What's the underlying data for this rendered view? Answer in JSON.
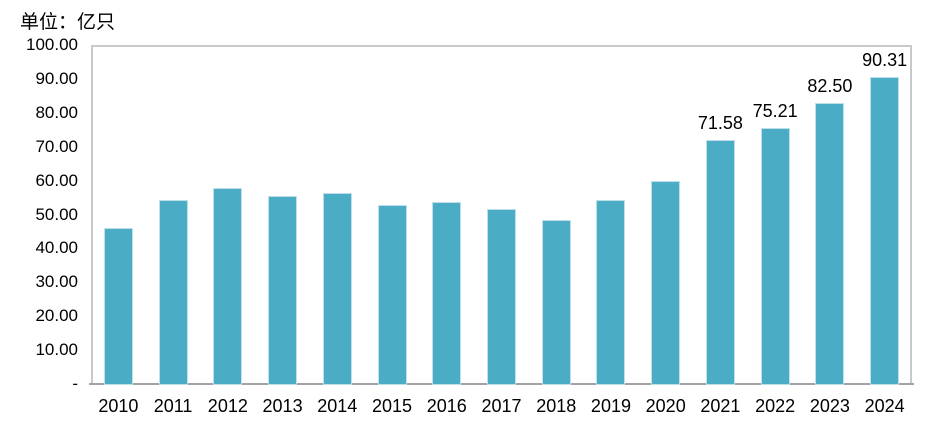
{
  "unit_label": "单位：亿只",
  "chart_data": {
    "type": "bar",
    "title": "单位：亿只",
    "xlabel": "",
    "ylabel": "",
    "categories": [
      "2010",
      "2011",
      "2012",
      "2013",
      "2014",
      "2015",
      "2016",
      "2017",
      "2018",
      "2019",
      "2020",
      "2021",
      "2022",
      "2023",
      "2024"
    ],
    "values": [
      45.7,
      53.9,
      57.5,
      55.2,
      56.0,
      52.6,
      53.4,
      51.2,
      48.2,
      54.1,
      59.6,
      71.58,
      75.21,
      82.5,
      90.31
    ],
    "data_labels": [
      "",
      "",
      "",
      "",
      "",
      "",
      "",
      "",
      "",
      "",
      "",
      "71.58",
      "75.21",
      "82.50",
      "90.31"
    ],
    "ylim": [
      0,
      100
    ],
    "y_ticks": [
      {
        "value": 100,
        "label": "100.00"
      },
      {
        "value": 90,
        "label": "90.00"
      },
      {
        "value": 80,
        "label": "80.00"
      },
      {
        "value": 70,
        "label": "70.00"
      },
      {
        "value": 60,
        "label": "60.00"
      },
      {
        "value": 50,
        "label": "50.00"
      },
      {
        "value": 40,
        "label": "40.00"
      },
      {
        "value": 30,
        "label": "30.00"
      },
      {
        "value": 20,
        "label": "20.00"
      },
      {
        "value": 10,
        "label": "10.00"
      },
      {
        "value": 0,
        "label": "-"
      }
    ],
    "grid": false,
    "legend": null,
    "colors": {
      "bar_fill": "#4bacc6",
      "bar_edge": "#bfe0ea",
      "plot_border": "#c9c9c9",
      "axis_baseline": "#a3a3a3",
      "text": "#000000",
      "background": "#ffffff"
    }
  }
}
